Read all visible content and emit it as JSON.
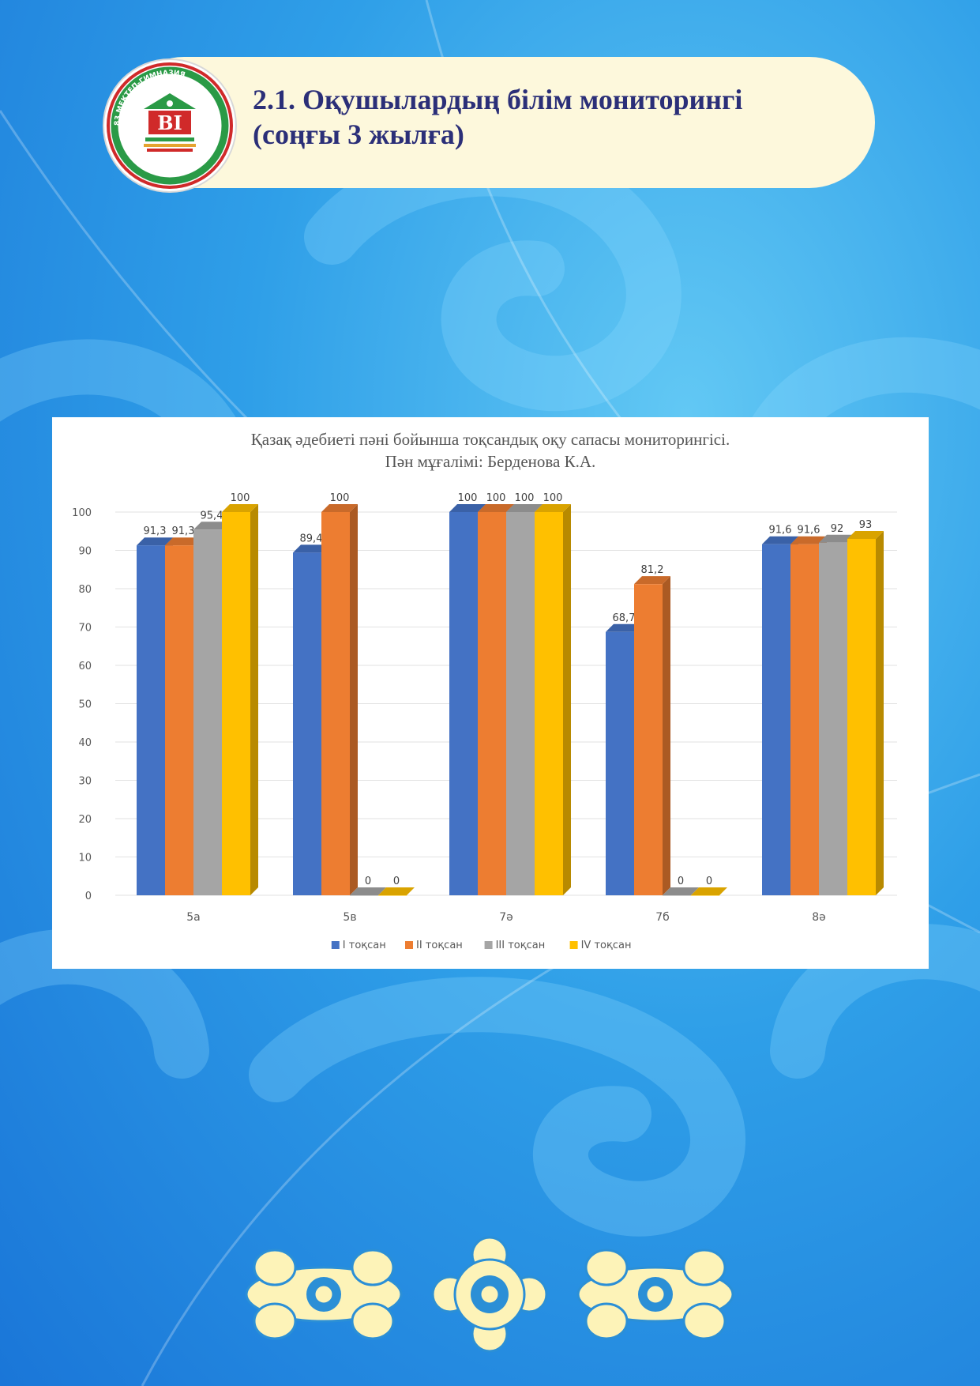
{
  "header": {
    "title_line1": "2.1. Оқушылардың білім мониторингі",
    "title_line2": "(соңғы 3 жылға)",
    "logo_text": "83 МЕКТЕП-ГИМНАЗИЯ"
  },
  "colors": {
    "banner": "#fdf8dc",
    "title_text": "#2b2f78",
    "series": [
      "#4472c4",
      "#ed7d31",
      "#a5a5a5",
      "#ffc000"
    ]
  },
  "chart_data": {
    "type": "bar",
    "title": "Қазақ әдебиеті пәні бойынша тоқсандық оқу сапасы мониторингісі.",
    "subtitle": "Пән мұғалімі: Берденова К.А.",
    "categories": [
      "5а",
      "5в",
      "7ә",
      "7б",
      "8ә"
    ],
    "series": [
      {
        "name": "І тоқсан",
        "values": [
          91.3,
          89.4,
          100,
          68.7,
          91.6
        ],
        "labels": [
          "91,3",
          "89,4",
          "100",
          "68,7",
          "91,6"
        ]
      },
      {
        "name": "ІІ тоқсан",
        "values": [
          91.3,
          100,
          100,
          81.2,
          91.6
        ],
        "labels": [
          "91,3",
          "100",
          "100",
          "81,2",
          "91,6"
        ]
      },
      {
        "name": "ІІІ тоқсан",
        "values": [
          95.4,
          0,
          100,
          0,
          92
        ],
        "labels": [
          "95,4",
          "0",
          "100",
          "0",
          "92"
        ]
      },
      {
        "name": "ІV тоқсан",
        "values": [
          100,
          0,
          100,
          0,
          93
        ],
        "labels": [
          "100",
          "0",
          "100",
          "0",
          "93"
        ]
      }
    ],
    "ylim": [
      0,
      100
    ],
    "yticks": [
      0,
      10,
      20,
      30,
      40,
      50,
      60,
      70,
      80,
      90,
      100
    ],
    "grid": true,
    "legend": "bottom"
  }
}
